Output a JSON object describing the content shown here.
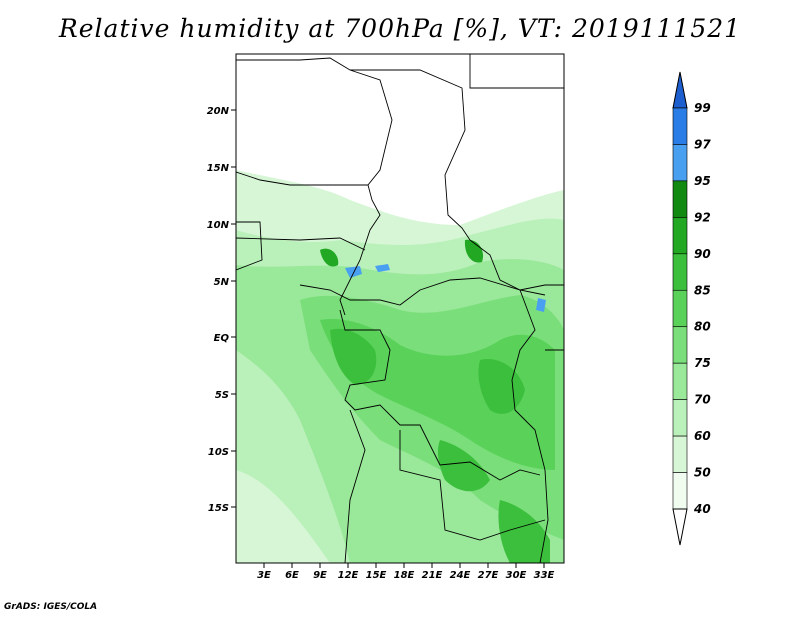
{
  "title": "Relative humidity at 700hPa [%], VT: 2019111521",
  "footer": "GrADS: IGES/COLA",
  "lat_labels": [
    "20N",
    "15N",
    "10N",
    "5N",
    "EQ",
    "5S",
    "10S",
    "15S"
  ],
  "lon_labels": [
    "3E",
    "6E",
    "9E",
    "12E",
    "15E",
    "18E",
    "21E",
    "24E",
    "27E",
    "30E",
    "33E"
  ],
  "colorbar": {
    "levels": [
      "99",
      "97",
      "95",
      "92",
      "90",
      "85",
      "80",
      "75",
      "70",
      "60",
      "50",
      "40"
    ],
    "colors": [
      "#1e5fd0",
      "#2a7de6",
      "#4aa0f0",
      "#128a12",
      "#22a822",
      "#3cbf3c",
      "#5ad25a",
      "#7ade7a",
      "#9ae89a",
      "#baf0ba",
      "#d6f6d6",
      "#effcef",
      "#ffffff"
    ]
  }
}
